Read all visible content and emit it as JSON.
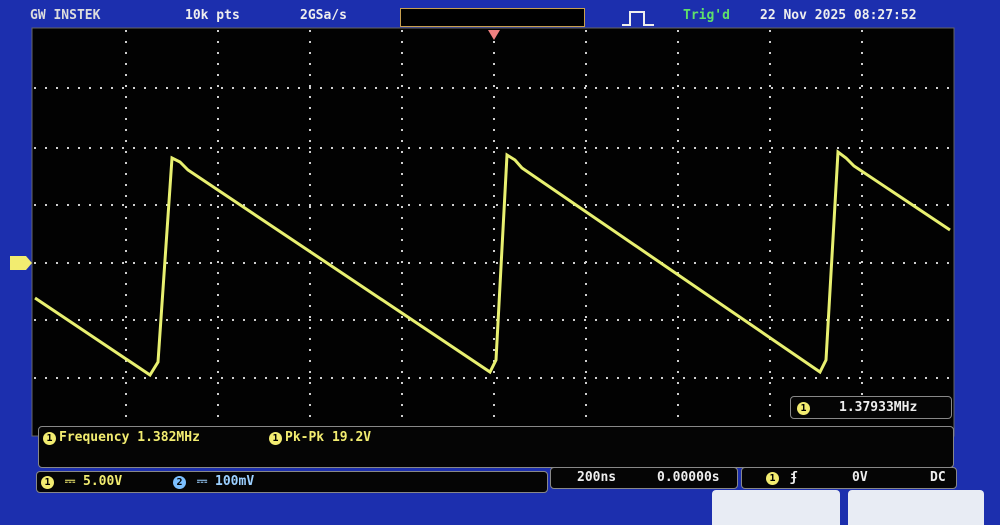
{
  "top_bar": {
    "brand": "GW INSTEK",
    "record_length": "10k pts",
    "sample_rate": "2GSa/s",
    "trigger_status": "Trig'd",
    "datetime": "22 Nov 2025 08:27:52"
  },
  "counter": {
    "channel": "1",
    "value": "1.37933MHz"
  },
  "measurements": [
    {
      "channel": "1",
      "label": "Frequency",
      "value": "1.382MHz"
    },
    {
      "channel": "1",
      "label": "Pk-Pk",
      "value": "19.2V"
    }
  ],
  "channels": [
    {
      "number": "1",
      "scale": "5.00V"
    },
    {
      "number": "2",
      "scale": "100mV"
    }
  ],
  "horizontal": {
    "timebase": "200ns",
    "position": "0.00000s"
  },
  "trigger": {
    "source": "1",
    "level": "0V",
    "coupling": "DC"
  }
}
